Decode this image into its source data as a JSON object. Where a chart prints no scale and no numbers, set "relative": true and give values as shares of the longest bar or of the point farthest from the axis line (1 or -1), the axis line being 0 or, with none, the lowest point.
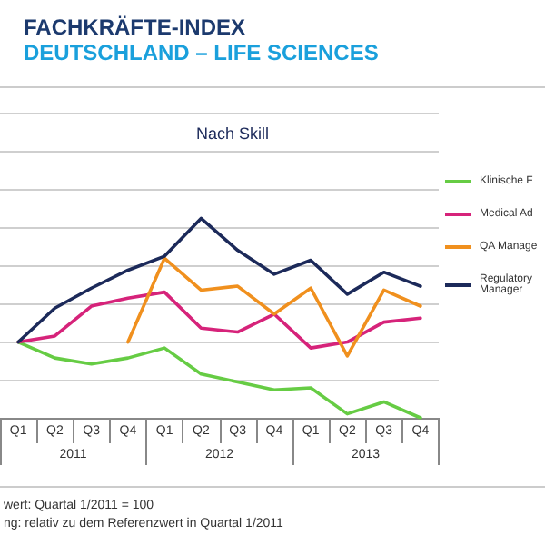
{
  "chart_data": {
    "type": "line",
    "title": "FACHKRÄFTE-INDEX",
    "subtitle": "DEUTSCHLAND – LIFE SCIENCES",
    "relative": true,
    "grid": "y",
    "legend": "right",
    "marker": "none",
    "line_style": "solid",
    "categories": [
      "Q1",
      "Q2",
      "Q3",
      "Q4",
      "Q1",
      "Q2",
      "Q3",
      "Q4",
      "Q1",
      "Q2",
      "Q3",
      "Q4"
    ],
    "annotations": [
      "Nach Skill",
      "2011",
      "2012",
      "2013",
      "wert: Quartal 1/2011 = 100",
      "ng: relativ zu dem Referenzwert in Quartal 1/2011"
    ],
    "series": [
      {
        "name": "Klinische F",
        "color": "#66cc44",
        "values": [
          0.38,
          0.3,
          0.27,
          0.3,
          0.35,
          0.22,
          0.18,
          0.14,
          0.15,
          0.02,
          0.08,
          0
        ]
      },
      {
        "name": "Medical Ad",
        "color": "#d6237a",
        "values": [
          0.38,
          0.41,
          0.56,
          0.6,
          0.63,
          0.45,
          0.43,
          0.52,
          0.35,
          0.38,
          0.48,
          0.5
        ]
      },
      {
        "name": "QA Manage",
        "color": "#f0901e",
        "values": [
          null,
          null,
          null,
          0.38,
          0.8,
          0.64,
          0.66,
          0.52,
          0.65,
          0.31,
          0.64,
          0.56
        ]
      },
      {
        "name": "Regulatory Manager",
        "color": "#1c2a5a",
        "values": [
          0.38,
          0.55,
          0.65,
          0.74,
          0.81,
          1,
          0.84,
          0.72,
          0.79,
          0.62,
          0.73,
          0.66
        ]
      }
    ]
  }
}
